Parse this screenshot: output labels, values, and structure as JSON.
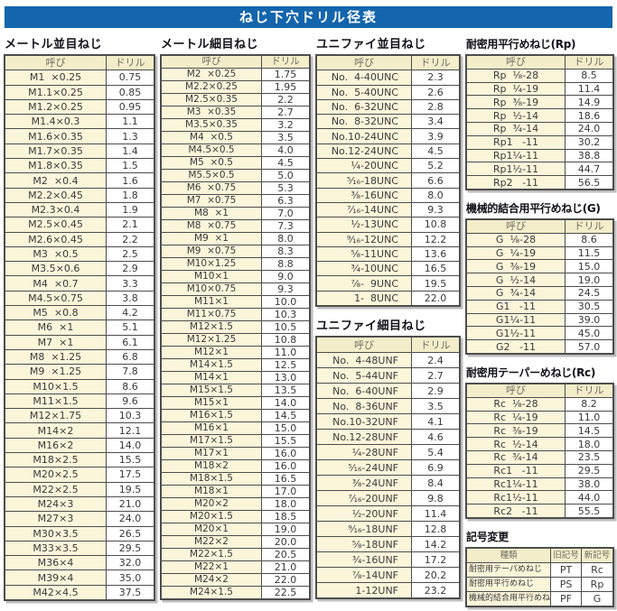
{
  "title": "ねじ下穴ドリル径表",
  "colors": {
    "title_bar_bg": "#1365ad",
    "title_text": "#ffffff",
    "header_cell_bg": "#f4edca",
    "name_cell_bg": "#fbf5da",
    "value_cell_bg": "#ffffff",
    "border": "#4d4d4d"
  },
  "headers": {
    "name": "呼び",
    "drill": "ドリル"
  },
  "sections": {
    "metric_coarse": {
      "title": "メートル並目ねじ",
      "rows": [
        [
          "M1  ×0.25",
          "0.75"
        ],
        [
          "M1.1×0.25",
          "0.85"
        ],
        [
          "M1.2×0.25",
          "0.95"
        ],
        [
          "M1.4×0.3",
          "1.1"
        ],
        [
          "M1.6×0.35",
          "1.3"
        ],
        [
          "M1.7×0.35",
          "1.4"
        ],
        [
          "M1.8×0.35",
          "1.5"
        ],
        [
          "M2  ×0.4",
          "1.6"
        ],
        [
          "M2.2×0.45",
          "1.8"
        ],
        [
          "M2.3×0.4",
          "1.9"
        ],
        [
          "M2.5×0.45",
          "2.1"
        ],
        [
          "M2.6×0.45",
          "2.2"
        ],
        [
          "M3  ×0.5",
          "2.5"
        ],
        [
          "M3.5×0.6",
          "2.9"
        ],
        [
          "M4  ×0.7",
          "3.3"
        ],
        [
          "M4.5×0.75",
          "3.8"
        ],
        [
          "M5  ×0.8",
          "4.2"
        ],
        [
          "M6  ×1",
          "5.1"
        ],
        [
          "M7  ×1",
          "6.1"
        ],
        [
          "M8  ×1.25",
          "6.8"
        ],
        [
          "M9  ×1.25",
          "7.8"
        ],
        [
          "M10×1.5",
          "8.6"
        ],
        [
          "M11×1.5",
          "9.6"
        ],
        [
          "M12×1.75",
          "10.3"
        ],
        [
          "M14×2",
          "12.1"
        ],
        [
          "M16×2",
          "14.0"
        ],
        [
          "M18×2.5",
          "15.5"
        ],
        [
          "M20×2.5",
          "17.5"
        ],
        [
          "M22×2.5",
          "19.5"
        ],
        [
          "M24×3",
          "21.0"
        ],
        [
          "M27×3",
          "24.0"
        ],
        [
          "M30×3.5",
          "26.5"
        ],
        [
          "M33×3.5",
          "29.5"
        ],
        [
          "M36×4",
          "32.0"
        ],
        [
          "M39×4",
          "35.0"
        ],
        [
          "M42×4.5",
          "37.5"
        ]
      ]
    },
    "metric_fine": {
      "title": "メートル細目ねじ",
      "rows": [
        [
          "M2  ×0.25",
          "1.75"
        ],
        [
          "M2.2×0.25",
          "1.95"
        ],
        [
          "M2.5×0.35",
          "2.2"
        ],
        [
          "M3  ×0.35",
          "2.7"
        ],
        [
          "M3.5×0.35",
          "3.2"
        ],
        [
          "M4  ×0.5",
          "3.5"
        ],
        [
          "M4.5×0.5",
          "4.0"
        ],
        [
          "M5  ×0.5",
          "4.5"
        ],
        [
          "M5.5×0.5",
          "5.0"
        ],
        [
          "M6  ×0.75",
          "5.3"
        ],
        [
          "M7  ×0.75",
          "6.3"
        ],
        [
          "M8  ×1",
          "7.0"
        ],
        [
          "M8  ×0.75",
          "7.3"
        ],
        [
          "M9  ×1",
          "8.0"
        ],
        [
          "M9  ×0.75",
          "8.3"
        ],
        [
          "M10×1.25",
          "8.8"
        ],
        [
          "M10×1",
          "9.0"
        ],
        [
          "M10×0.75",
          "9.3"
        ],
        [
          "M11×1",
          "10.0"
        ],
        [
          "M11×0.75",
          "10.3"
        ],
        [
          "M12×1.5",
          "10.5"
        ],
        [
          "M12×1.25",
          "10.8"
        ],
        [
          "M12×1",
          "11.0"
        ],
        [
          "M14×1.5",
          "12.5"
        ],
        [
          "M14×1",
          "13.0"
        ],
        [
          "M15×1.5",
          "13.5"
        ],
        [
          "M15×1",
          "14.0"
        ],
        [
          "M16×1.5",
          "14.5"
        ],
        [
          "M16×1",
          "15.0"
        ],
        [
          "M17×1.5",
          "15.5"
        ],
        [
          "M17×1",
          "16.0"
        ],
        [
          "M18×2",
          "16.0"
        ],
        [
          "M18×1.5",
          "16.5"
        ],
        [
          "M18×1",
          "17.0"
        ],
        [
          "M20×2",
          "18.0"
        ],
        [
          "M20×1.5",
          "18.5"
        ],
        [
          "M20×1",
          "19.0"
        ],
        [
          "M22×2",
          "20.0"
        ],
        [
          "M22×1.5",
          "20.5"
        ],
        [
          "M22×1",
          "21.0"
        ],
        [
          "M24×2",
          "22.0"
        ],
        [
          "M24×1.5",
          "22.5"
        ]
      ]
    },
    "unified_coarse": {
      "title": "ユニファイ並目ねじ",
      "rows": [
        [
          "No.  4-40UNC",
          "2.3"
        ],
        [
          "No.  5-40UNC",
          "2.6"
        ],
        [
          "No.  6-32UNC",
          "2.8"
        ],
        [
          "No.  8-32UNC",
          "3.4"
        ],
        [
          "No.10-24UNC",
          "3.9"
        ],
        [
          "No.12-24UNC",
          "4.5"
        ],
        [
          "¹⁄₄-20UNC",
          "5.2"
        ],
        [
          "⁵⁄₁₆-18UNC",
          "6.6"
        ],
        [
          "³⁄₈-16UNC",
          "8.0"
        ],
        [
          "⁷⁄₁₆-14UNC",
          "9.3"
        ],
        [
          "¹⁄₂-13UNC",
          "10.8"
        ],
        [
          "⁹⁄₁₆-12UNC",
          "12.2"
        ],
        [
          "⁵⁄₈-11UNC",
          "13.6"
        ],
        [
          "³⁄₄-10UNC",
          "16.5"
        ],
        [
          "⁷⁄₈-  9UNC",
          "19.5"
        ],
        [
          "1-  8UNC",
          "22.0"
        ]
      ]
    },
    "unified_fine": {
      "title": "ユニファイ細目ねじ",
      "rows": [
        [
          "No.  4-48UNF",
          "2.4"
        ],
        [
          "No.  5-44UNF",
          "2.7"
        ],
        [
          "No.  6-40UNF",
          "2.9"
        ],
        [
          "No.  8-36UNF",
          "3.5"
        ],
        [
          "No.10-32UNF",
          "4.1"
        ],
        [
          "No.12-28UNF",
          "4.6"
        ],
        [
          "¹⁄₄-28UNF",
          "5.4"
        ],
        [
          "⁵⁄₁₆-24UNF",
          "6.9"
        ],
        [
          "³⁄₈-24UNF",
          "8.4"
        ],
        [
          "⁷⁄₁₆-20UNF",
          "9.8"
        ],
        [
          "¹⁄₂-20UNF",
          "11.4"
        ],
        [
          "⁹⁄₁₆-18UNF",
          "12.8"
        ],
        [
          "⁵⁄₈-18UNF",
          "14.2"
        ],
        [
          "³⁄₄-16UNF",
          "17.2"
        ],
        [
          "⁷⁄₈-14UNF",
          "20.2"
        ],
        [
          "1-12UNF",
          "23.2"
        ]
      ]
    },
    "rp": {
      "title": "耐密用平行めねじ(Rp)",
      "rows": [
        [
          "Rp  ¹⁄₈-28",
          "8.5"
        ],
        [
          "Rp  ¹⁄₄-19",
          "11.4"
        ],
        [
          "Rp  ³⁄₈-19",
          "14.9"
        ],
        [
          "Rp  ¹⁄₂-14",
          "18.6"
        ],
        [
          "Rp  ³⁄₄-14",
          "24.0"
        ],
        [
          "Rp1   -11",
          "30.2"
        ],
        [
          "Rp1¹⁄₄-11",
          "38.8"
        ],
        [
          "Rp1¹⁄₂-11",
          "44.7"
        ],
        [
          "Rp2   -11",
          "56.5"
        ]
      ]
    },
    "g": {
      "title": "機械的結合用平行めねじ(G)",
      "rows": [
        [
          "G  ¹⁄₈-28",
          "8.6"
        ],
        [
          "G  ¹⁄₄-19",
          "11.5"
        ],
        [
          "G  ³⁄₈-19",
          "15.0"
        ],
        [
          "G  ¹⁄₂-14",
          "19.0"
        ],
        [
          "G  ³⁄₄-14",
          "24.5"
        ],
        [
          "G1   -11",
          "30.5"
        ],
        [
          "G1¹⁄₄-11",
          "39.0"
        ],
        [
          "G1¹⁄₂-11",
          "45.0"
        ],
        [
          "G2   -11",
          "57.0"
        ]
      ]
    },
    "rc": {
      "title": "耐密用テーパーめねじ(Rc)",
      "rows": [
        [
          "Rc  ¹⁄₈-28",
          "8.2"
        ],
        [
          "Rc  ¹⁄₄-19",
          "11.0"
        ],
        [
          "Rc  ³⁄₈-19",
          "14.5"
        ],
        [
          "Rc  ¹⁄₂-14",
          "18.0"
        ],
        [
          "Rc  ³⁄₄-14",
          "23.5"
        ],
        [
          "Rc1   -11",
          "29.5"
        ],
        [
          "Rc1¹⁄₄-11",
          "38.0"
        ],
        [
          "Rc1¹⁄₂-11",
          "44.0"
        ],
        [
          "Rc2   -11",
          "55.5"
        ]
      ]
    },
    "symbol_change": {
      "title": "記号変更",
      "headers": [
        "種類",
        "旧記号",
        "新記号"
      ],
      "rows": [
        [
          "耐密用テーパめねじ",
          "PT",
          "Rc"
        ],
        [
          "耐密用平行めねじ",
          "PS",
          "Rp"
        ],
        [
          "機械的結合用平行めねじ",
          "PF",
          "G"
        ]
      ]
    }
  }
}
